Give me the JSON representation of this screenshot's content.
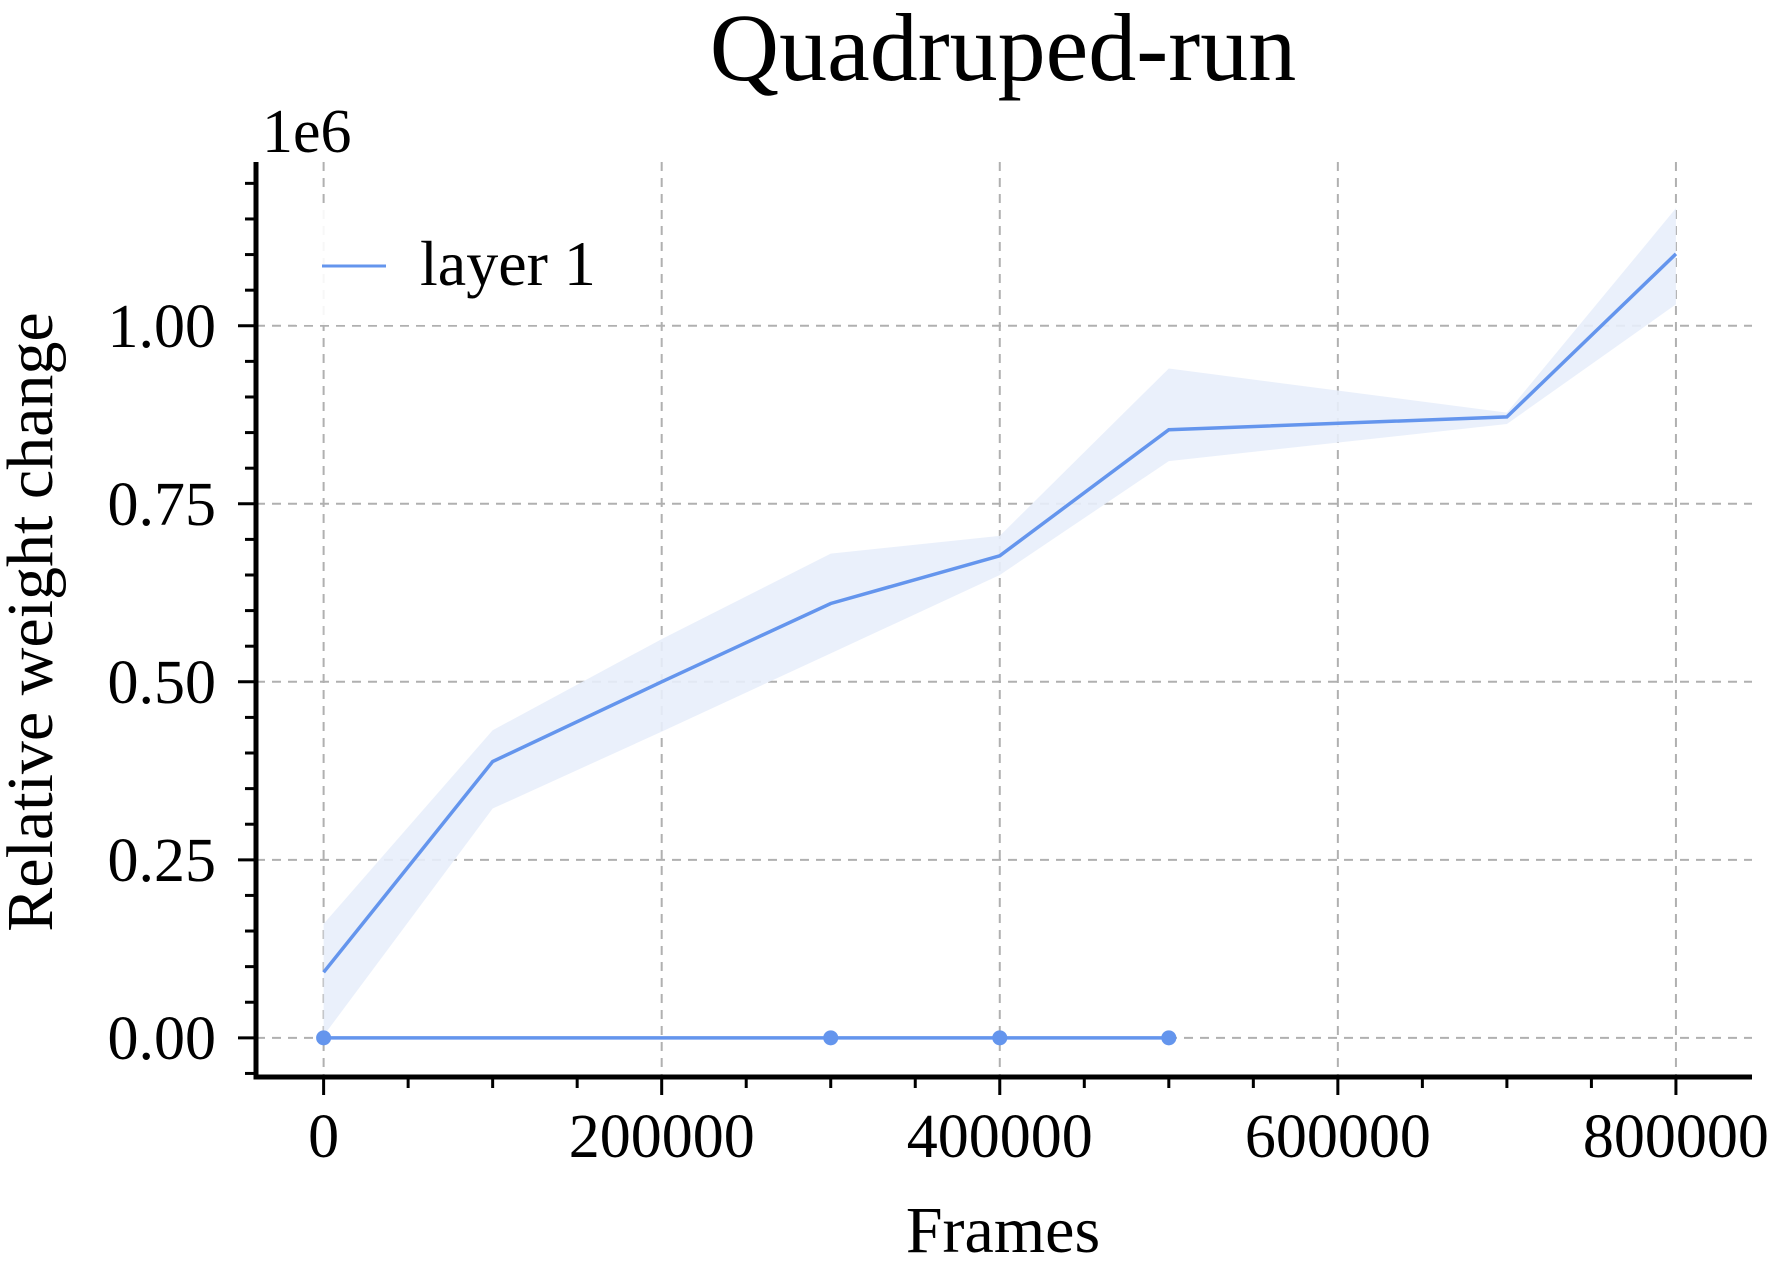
{
  "chart_data": {
    "type": "line",
    "title": "Quadruped-run",
    "xlabel": "Frames",
    "ylabel": "Relative weight change",
    "y_offset_label": "1e6",
    "xlim": [
      -40000,
      845000
    ],
    "ylim": [
      -0.055,
      1.23
    ],
    "x_ticks": [
      0,
      200000,
      400000,
      600000,
      800000
    ],
    "x_tick_labels": [
      "0",
      "200000",
      "400000",
      "600000",
      "800000"
    ],
    "y_ticks": [
      0.0,
      0.25,
      0.5,
      0.75,
      1.0
    ],
    "y_tick_labels": [
      "0.00",
      "0.25",
      "0.50",
      "0.75",
      "1.00"
    ],
    "x_minor_step": 50000,
    "y_minor_step": 0.05,
    "grid": true,
    "legend_position": "upper-left",
    "colors": {
      "series": "#6495ED",
      "band": "#E8EEFB"
    },
    "series": [
      {
        "name": "layer 1",
        "x": [
          0,
          100000,
          200000,
          300000,
          400000,
          500000,
          700000,
          800000
        ],
        "y": [
          0.092,
          0.388,
          0.5,
          0.61,
          0.677,
          0.854,
          0.872,
          1.101
        ],
        "y_lower": [
          0.003,
          0.322,
          0.43,
          0.54,
          0.65,
          0.81,
          0.862,
          1.03
        ],
        "y_upper": [
          0.16,
          0.432,
          0.56,
          0.68,
          0.705,
          0.94,
          0.878,
          1.165
        ]
      },
      {
        "x": [
          0,
          100000,
          200000,
          300000,
          400000,
          500000
        ],
        "y": [
          0,
          0,
          0,
          0,
          0,
          0
        ],
        "marker_x": [
          0,
          300000,
          400000,
          500000
        ]
      }
    ]
  }
}
